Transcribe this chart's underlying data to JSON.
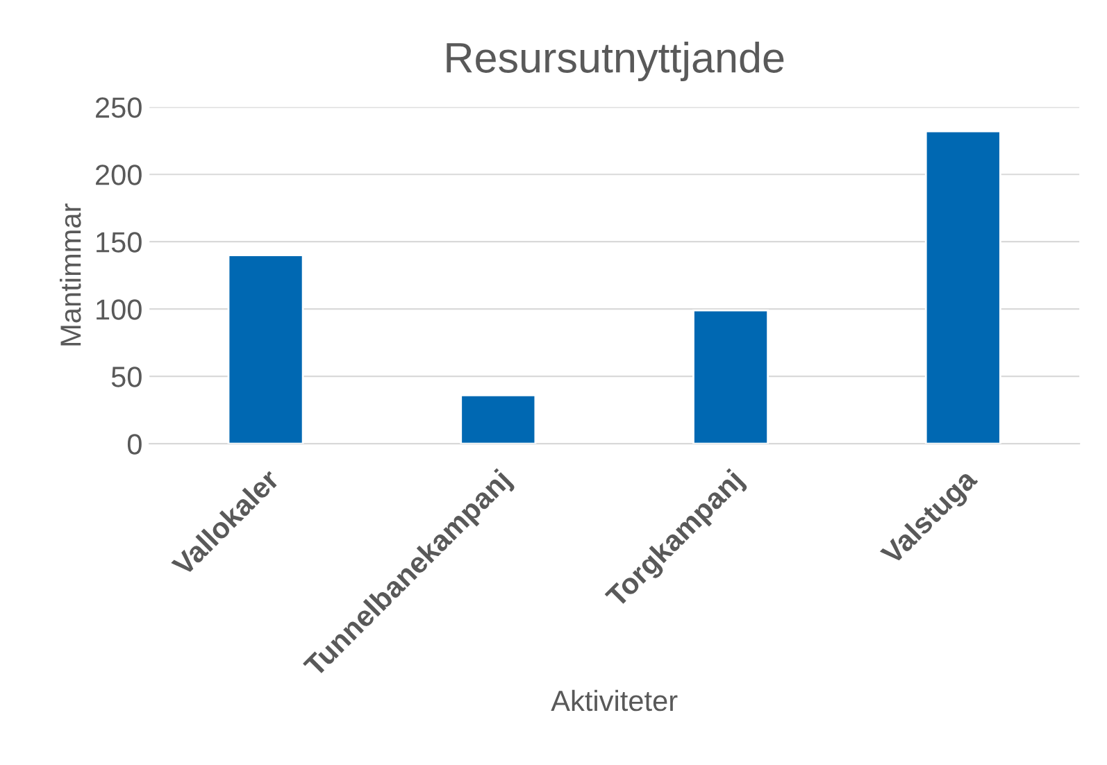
{
  "chart_data": {
    "type": "bar",
    "title": "Resursutnyttjande",
    "xlabel": "Aktiviteter",
    "ylabel": "Mantimmar",
    "categories": [
      "Vallokaler",
      "Tunnelbanekampanj",
      "Torgkampanj",
      "Valstuga"
    ],
    "values": [
      140,
      36,
      99,
      232
    ],
    "color": "#0068b2",
    "ylim": [
      0,
      250
    ],
    "yticks": [
      0,
      50,
      100,
      150,
      200,
      250
    ],
    "grid": "y"
  }
}
